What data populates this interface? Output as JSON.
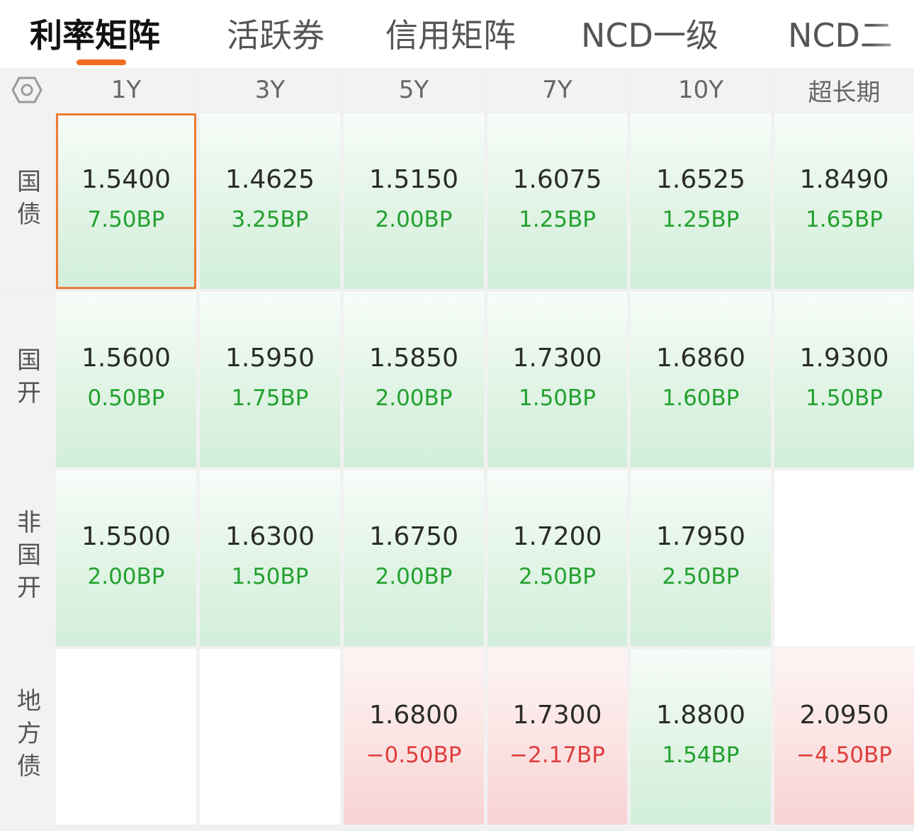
{
  "tabs": [
    {
      "label": "利率矩阵",
      "active": true
    },
    {
      "label": "活跃券",
      "active": false
    },
    {
      "label": "信用矩阵",
      "active": false
    },
    {
      "label": "NCD一级",
      "active": false
    },
    {
      "label": "NCD二",
      "active": false
    }
  ],
  "matrix": {
    "corner_icon": "settings-hex-icon",
    "columns": [
      "1Y",
      "3Y",
      "5Y",
      "7Y",
      "10Y",
      "超长期"
    ],
    "rows": [
      {
        "label": "国债",
        "cells": [
          {
            "rate": "1.5400",
            "change": "7.50BP",
            "direction": "up",
            "selected": true
          },
          {
            "rate": "1.4625",
            "change": "3.25BP",
            "direction": "up"
          },
          {
            "rate": "1.5150",
            "change": "2.00BP",
            "direction": "up"
          },
          {
            "rate": "1.6075",
            "change": "1.25BP",
            "direction": "up"
          },
          {
            "rate": "1.6525",
            "change": "1.25BP",
            "direction": "up"
          },
          {
            "rate": "1.8490",
            "change": "1.65BP",
            "direction": "up"
          }
        ]
      },
      {
        "label": "国开",
        "cells": [
          {
            "rate": "1.5600",
            "change": "0.50BP",
            "direction": "up"
          },
          {
            "rate": "1.5950",
            "change": "1.75BP",
            "direction": "up"
          },
          {
            "rate": "1.5850",
            "change": "2.00BP",
            "direction": "up"
          },
          {
            "rate": "1.7300",
            "change": "1.50BP",
            "direction": "up"
          },
          {
            "rate": "1.6860",
            "change": "1.60BP",
            "direction": "up"
          },
          {
            "rate": "1.9300",
            "change": "1.50BP",
            "direction": "up"
          }
        ]
      },
      {
        "label": "非国开",
        "cells": [
          {
            "rate": "1.5500",
            "change": "2.00BP",
            "direction": "up"
          },
          {
            "rate": "1.6300",
            "change": "1.50BP",
            "direction": "up"
          },
          {
            "rate": "1.6750",
            "change": "2.00BP",
            "direction": "up"
          },
          {
            "rate": "1.7200",
            "change": "2.50BP",
            "direction": "up"
          },
          {
            "rate": "1.7950",
            "change": "2.50BP",
            "direction": "up"
          },
          null
        ]
      },
      {
        "label": "地方债",
        "cells": [
          null,
          null,
          {
            "rate": "1.6800",
            "change": "−0.50BP",
            "direction": "down"
          },
          {
            "rate": "1.7300",
            "change": "−2.17BP",
            "direction": "down"
          },
          {
            "rate": "1.8800",
            "change": "1.54BP",
            "direction": "up"
          },
          {
            "rate": "2.0950",
            "change": "−4.50BP",
            "direction": "down"
          }
        ]
      }
    ]
  },
  "colors": {
    "accent": "#f26b1d",
    "up_text": "#23a12e",
    "down_text": "#e03d3d",
    "up_cell": "#d2eedb",
    "down_cell": "#f8d2d2"
  }
}
